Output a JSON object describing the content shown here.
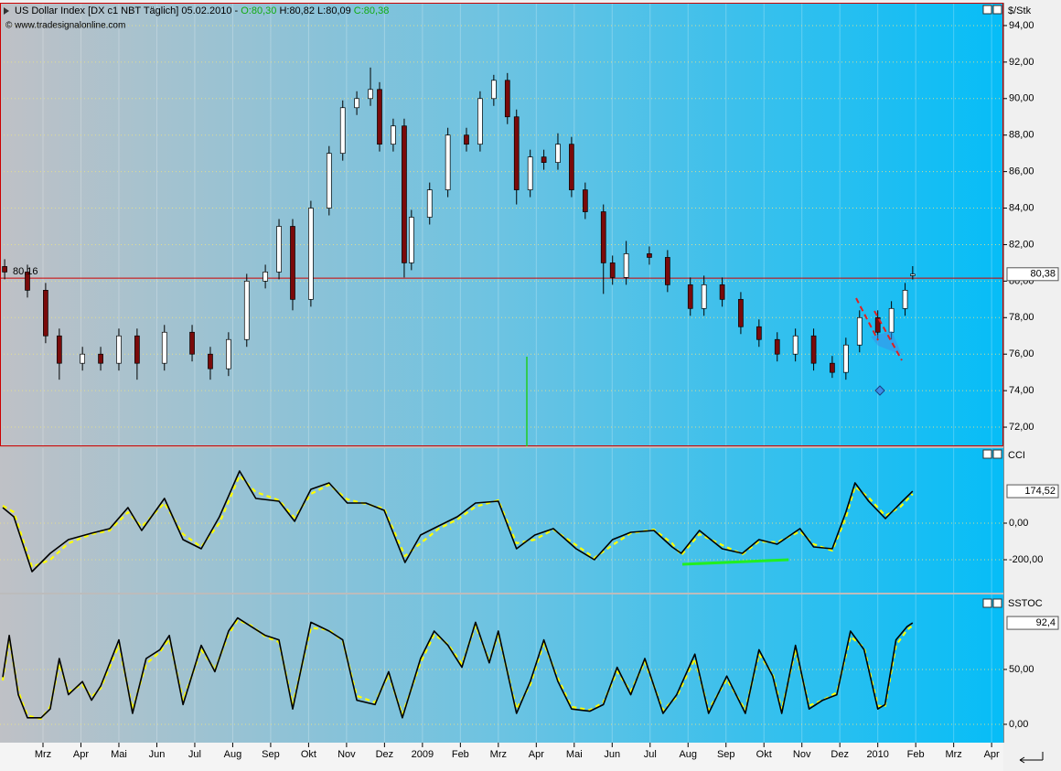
{
  "header": {
    "instrument": "US Dollar Index [DX c1 NBT  Täglich] 05.02.2010 -",
    "open": "O:80,30",
    "high": "H:80,82",
    "low": "L:80,09",
    "close": "C:80,38",
    "source": "© www.tradesignalonline.com"
  },
  "chart_data": [
    {
      "type": "candlestick",
      "axis_title": "$/Stk",
      "x": [
        0.99,
        1.59,
        2.07,
        2.43,
        3.04,
        3.52,
        4.0,
        4.48,
        5.2,
        5.93,
        6.41,
        6.89,
        7.37,
        7.86,
        8.22,
        8.58,
        9.06,
        9.54,
        9.9,
        10.27,
        10.63,
        10.87,
        11.23,
        11.52,
        11.71,
        12.19,
        12.67,
        13.16,
        13.52,
        13.88,
        14.24,
        14.48,
        14.84,
        15.2,
        15.57,
        15.93,
        16.29,
        16.77,
        17.01,
        17.37,
        17.98,
        18.46,
        19.06,
        19.42,
        19.9,
        20.39,
        20.87,
        21.35,
        21.83,
        22.31,
        22.8,
        23.16,
        23.52,
        24.0,
        24.36,
        24.72,
        24.92
      ],
      "open": [
        80.8,
        80.5,
        79.5,
        77,
        75.5,
        76,
        75.5,
        77,
        75.5,
        77.2,
        76,
        75.2,
        76.8,
        80,
        80.5,
        83,
        79,
        84,
        87,
        89.5,
        90,
        90.5,
        87.5,
        88.5,
        81,
        83.5,
        85,
        88,
        87.5,
        90,
        91,
        89,
        85,
        86.8,
        86.5,
        87.5,
        85,
        83.8,
        81,
        80.2,
        81.5,
        81.3,
        79.8,
        78.5,
        79.8,
        79,
        77.5,
        76.8,
        76,
        77,
        75.5,
        75,
        76.5,
        78,
        77.2,
        78.5,
        80.3
      ],
      "high": [
        81.2,
        80.9,
        79.9,
        77.4,
        76.4,
        76.4,
        77.4,
        77.4,
        77.6,
        77.6,
        76.4,
        77.2,
        80.4,
        80.9,
        83.4,
        83.4,
        84.4,
        87.4,
        89.9,
        90.4,
        91.7,
        90.9,
        88.9,
        88.9,
        83.9,
        85.4,
        88.4,
        88.4,
        90.4,
        91.3,
        91.4,
        89.4,
        87.2,
        87.2,
        88.1,
        87.9,
        85.4,
        84.2,
        81.4,
        82.2,
        81.9,
        81.7,
        80.2,
        80.3,
        80.2,
        79.4,
        77.9,
        77.2,
        77.4,
        77.4,
        75.9,
        76.9,
        78.4,
        78.4,
        78.9,
        79.9,
        80.82
      ],
      "low": [
        80.1,
        79.1,
        76.6,
        74.6,
        75.1,
        75.1,
        75.1,
        74.6,
        75.1,
        75.6,
        74.6,
        74.8,
        76.4,
        79.6,
        80.1,
        78.4,
        78.6,
        83.6,
        86.6,
        89.1,
        89.6,
        87.1,
        87.1,
        80.2,
        80.6,
        83.1,
        84.6,
        87.1,
        87.1,
        89.6,
        88.6,
        84.2,
        84.6,
        86.1,
        86.1,
        84.6,
        83.4,
        79.3,
        79.8,
        79.8,
        80.9,
        79.4,
        78.1,
        78.1,
        78.6,
        77.1,
        76.4,
        75.6,
        75.6,
        75.1,
        74.7,
        74.6,
        76.1,
        76.8,
        76.8,
        78.1,
        80.09
      ],
      "close": [
        80.5,
        79.5,
        77,
        75.5,
        76,
        75.5,
        77,
        75.5,
        77.2,
        76,
        75.2,
        76.8,
        80,
        80.5,
        83,
        79,
        84,
        87,
        89.5,
        90,
        90.5,
        87.5,
        88.5,
        81,
        83.5,
        85,
        88,
        87.5,
        90,
        91,
        89,
        85,
        86.8,
        86.5,
        87.5,
        85,
        83.8,
        81,
        80.2,
        81.5,
        81.3,
        79.8,
        78.5,
        79.8,
        79,
        77.5,
        76.8,
        76,
        77,
        75.5,
        75,
        76.5,
        78,
        77.2,
        78.5,
        79.5,
        80.38
      ],
      "up_color": "#ffffff",
      "down_color": "#7a0a0a",
      "last_value_label": "80,38",
      "reference_line": {
        "value": 80.16,
        "label": "80,16",
        "color": "#cc0000"
      },
      "ylim": [
        70.95,
        95.25
      ],
      "yticks": [
        {
          "value": 72,
          "label": "72,00"
        },
        {
          "value": 74,
          "label": "74,00"
        },
        {
          "value": 76,
          "label": "76,00"
        },
        {
          "value": 78,
          "label": "78,00"
        },
        {
          "value": 80,
          "label": "80,00"
        },
        {
          "value": 82,
          "label": "82,00"
        },
        {
          "value": 84,
          "label": "84,00"
        },
        {
          "value": 86,
          "label": "86,00"
        },
        {
          "value": 88,
          "label": "88,00"
        },
        {
          "value": 90,
          "label": "90,00"
        },
        {
          "value": 92,
          "label": "92,00"
        },
        {
          "value": 94,
          "label": "94,00"
        }
      ],
      "grid": true
    },
    {
      "type": "line",
      "axis_title": "CCI",
      "x": [
        0.94,
        1.23,
        1.71,
        2.19,
        2.67,
        3.28,
        3.76,
        4.24,
        4.6,
        5.2,
        5.69,
        6.17,
        6.65,
        7.18,
        7.61,
        8.22,
        8.63,
        9.06,
        9.54,
        10.02,
        10.51,
        10.99,
        11.54,
        11.95,
        12.43,
        12.92,
        13.4,
        14.0,
        14.48,
        14.96,
        15.45,
        16.05,
        16.53,
        17.01,
        17.49,
        18.1,
        18.58,
        18.82,
        19.3,
        19.9,
        20.43,
        20.87,
        21.35,
        21.95,
        22.31,
        22.8,
        23.16,
        23.4,
        23.76,
        24.2,
        24.6,
        24.92
      ],
      "series": [
        {
          "color": "#ffff00",
          "style": "dashed",
          "values": [
            95,
            60,
            -240,
            -200,
            -110,
            -60,
            -40,
            60,
            -20,
            110,
            -60,
            -130,
            0,
            260,
            170,
            125,
            30,
            160,
            210,
            130,
            105,
            80,
            -180,
            -110,
            -30,
            20,
            90,
            125,
            -110,
            -90,
            -35,
            -120,
            -190,
            -120,
            -55,
            -35,
            -110,
            -175,
            -60,
            -120,
            -170,
            -100,
            -105,
            -45,
            -115,
            -150,
            30,
            200,
            140,
            40,
            90,
            160
          ]
        },
        {
          "color": "#000000",
          "style": "solid",
          "values": [
            85,
            35,
            -265,
            -165,
            -90,
            -55,
            -30,
            85,
            -40,
            135,
            -90,
            -140,
            35,
            285,
            135,
            120,
            10,
            185,
            220,
            110,
            110,
            70,
            -215,
            -65,
            -15,
            35,
            110,
            120,
            -140,
            -65,
            -30,
            -140,
            -200,
            -90,
            -50,
            -40,
            -130,
            -165,
            -40,
            -140,
            -165,
            -90,
            -115,
            -30,
            -130,
            -140,
            60,
            220,
            120,
            25,
            110,
            174.52
          ]
        }
      ],
      "last_value_label": "174,52",
      "trendline": {
        "x": [
          18.85,
          21.65
        ],
        "values": [
          -225,
          -200
        ],
        "color": "#22ee22"
      },
      "ylim": [
        -380,
        410
      ],
      "yticks": [
        {
          "value": -200,
          "label": "-200,00"
        },
        {
          "value": 0,
          "label": "0,00"
        }
      ],
      "grid": true
    },
    {
      "type": "line",
      "axis_title": "SSTOC",
      "x": [
        0.94,
        1.11,
        1.35,
        1.59,
        1.95,
        2.19,
        2.43,
        2.67,
        3.04,
        3.28,
        3.52,
        4.0,
        4.36,
        4.72,
        5.08,
        5.33,
        5.69,
        6.17,
        6.53,
        6.89,
        7.13,
        7.49,
        7.86,
        8.22,
        8.58,
        9.06,
        9.54,
        9.9,
        10.27,
        10.75,
        11.11,
        11.47,
        11.95,
        12.31,
        12.67,
        13.04,
        13.4,
        13.76,
        14.0,
        14.48,
        14.84,
        15.2,
        15.57,
        15.93,
        16.41,
        16.77,
        17.13,
        17.49,
        17.86,
        18.34,
        18.7,
        19.18,
        19.54,
        20.02,
        20.51,
        20.87,
        21.23,
        21.47,
        21.83,
        22.19,
        22.55,
        22.92,
        23.28,
        23.64,
        24.0,
        24.19,
        24.48,
        24.77,
        24.92
      ],
      "series": [
        {
          "color": "#ffff00",
          "style": "dashed",
          "values": [
            40,
            78,
            30,
            8,
            5,
            16,
            55,
            30,
            36,
            25,
            33,
            72,
            14,
            55,
            66,
            78,
            22,
            68,
            50,
            82,
            95,
            90,
            80,
            75,
            18,
            88,
            86,
            76,
            26,
            20,
            45,
            9,
            56,
            82,
            73,
            55,
            90,
            58,
            82,
            14,
            36,
            74,
            42,
            16,
            13,
            20,
            48,
            30,
            57,
            13,
            25,
            60,
            13,
            41,
            13,
            64,
            46,
            13,
            68,
            17,
            22,
            29,
            80,
            70,
            17,
            16,
            72,
            86,
            90
          ]
        },
        {
          "color": "#000000",
          "style": "solid",
          "values": [
            43,
            81,
            27,
            6,
            6,
            14,
            60,
            27,
            39,
            22,
            35,
            77,
            10,
            60,
            68,
            81,
            18,
            72,
            48,
            85,
            97,
            89,
            81,
            77,
            14,
            93,
            85,
            77,
            22,
            18,
            48,
            6,
            60,
            85,
            72,
            52,
            93,
            56,
            85,
            10,
            39,
            77,
            39,
            14,
            12,
            18,
            52,
            27,
            60,
            10,
            27,
            64,
            10,
            44,
            10,
            68,
            44,
            10,
            72,
            14,
            22,
            27,
            85,
            68,
            14,
            18,
            77,
            89,
            92.4
          ]
        }
      ],
      "last_value_label": "92,4",
      "ylim": [
        -16.7,
        118.3
      ],
      "yticks": [
        {
          "value": 0,
          "label": "0,00"
        },
        {
          "value": 50,
          "label": "50,00"
        }
      ],
      "grid": true,
      "xlim": [
        0.867,
        27.31
      ],
      "xticks": [
        {
          "value": 2,
          "label": "Mrz"
        },
        {
          "value": 3,
          "label": "Apr"
        },
        {
          "value": 4,
          "label": "Mai"
        },
        {
          "value": 5,
          "label": "Jun"
        },
        {
          "value": 6,
          "label": "Jul"
        },
        {
          "value": 7,
          "label": "Aug"
        },
        {
          "value": 8,
          "label": "Sep"
        },
        {
          "value": 9,
          "label": "Okt"
        },
        {
          "value": 10,
          "label": "Nov"
        },
        {
          "value": 11,
          "label": "Dez"
        },
        {
          "value": 12,
          "label": "2009"
        },
        {
          "value": 13,
          "label": "Feb"
        },
        {
          "value": 14,
          "label": "Mrz"
        },
        {
          "value": 15,
          "label": "Apr"
        },
        {
          "value": 16,
          "label": "Mai"
        },
        {
          "value": 17,
          "label": "Jun"
        },
        {
          "value": 18,
          "label": "Jul"
        },
        {
          "value": 19,
          "label": "Aug"
        },
        {
          "value": 20,
          "label": "Sep"
        },
        {
          "value": 21,
          "label": "Okt"
        },
        {
          "value": 22,
          "label": "Nov"
        },
        {
          "value": 23,
          "label": "Dez"
        },
        {
          "value": 24,
          "label": "2010"
        },
        {
          "value": 25,
          "label": "Feb"
        },
        {
          "value": 26,
          "label": "Mrz"
        },
        {
          "value": 27,
          "label": "Apr"
        }
      ]
    }
  ]
}
